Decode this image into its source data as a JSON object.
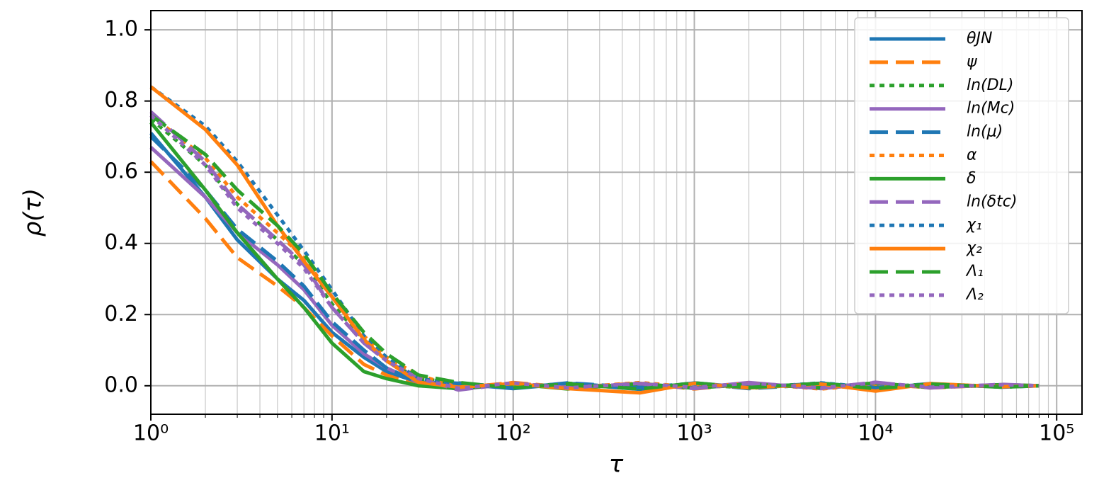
{
  "chart_data": {
    "type": "line",
    "xlabel": "τ",
    "ylabel": "ρ(τ)",
    "xscale": "log",
    "grid": true,
    "legend": "upper right",
    "xlim": [
      1,
      138000
    ],
    "ylim": [
      -0.08,
      1.054
    ],
    "xticks": [
      {
        "value": 1,
        "label": "10⁰"
      },
      {
        "value": 10,
        "label": "10¹"
      },
      {
        "value": 100,
        "label": "10²"
      },
      {
        "value": 1000,
        "label": "10³"
      },
      {
        "value": 10000,
        "label": "10⁴"
      },
      {
        "value": 100000,
        "label": "10⁵"
      }
    ],
    "xminorticks": [
      2,
      3,
      4,
      5,
      6,
      7,
      8,
      9,
      20,
      30,
      40,
      50,
      60,
      70,
      80,
      90,
      200,
      300,
      400,
      500,
      600,
      700,
      800,
      900,
      2000,
      3000,
      4000,
      5000,
      6000,
      7000,
      8000,
      9000,
      20000,
      30000,
      40000,
      50000,
      60000,
      70000,
      80000,
      90000
    ],
    "yticks": [
      {
        "value": 0,
        "label": "0.0"
      },
      0.2,
      0.4,
      0.6,
      0.8,
      {
        "value": 1,
        "label": "1.0"
      }
    ],
    "x": [
      1,
      2,
      3,
      5,
      7,
      10,
      15,
      20,
      30,
      50,
      100,
      200,
      500,
      1000,
      2000,
      5000,
      10000,
      20000,
      50000,
      80000
    ],
    "series": [
      {
        "name": "θJN",
        "color": "#1f77b4",
        "linestyle": "solid",
        "values": [
          0.71,
          0.53,
          0.41,
          0.3,
          0.24,
          0.15,
          0.08,
          0.04,
          0.01,
          0.005,
          -0.008,
          0.006,
          -0.01,
          0.008,
          -0.005,
          0.007,
          -0.006,
          0.004,
          -0.003,
          0.0
        ]
      },
      {
        "name": "ψ",
        "color": "#ff7f0e",
        "linestyle": "dashed",
        "values": [
          0.63,
          0.47,
          0.36,
          0.28,
          0.22,
          0.14,
          0.06,
          0.03,
          0.0,
          -0.006,
          0.009,
          -0.004,
          0.007,
          -0.009,
          0.006,
          -0.005,
          0.008,
          -0.006,
          0.003,
          0.0
        ]
      },
      {
        "name": "ln(DL)",
        "color": "#2ca02c",
        "linestyle": "dotted",
        "values": [
          0.75,
          0.62,
          0.51,
          0.41,
          0.34,
          0.23,
          0.13,
          0.07,
          0.02,
          0.008,
          -0.005,
          0.007,
          -0.008,
          0.005,
          -0.007,
          0.006,
          -0.004,
          0.005,
          -0.002,
          0.0
        ]
      },
      {
        "name": "ln(Mc)",
        "color": "#9467bd",
        "linestyle": "solid",
        "values": [
          0.67,
          0.53,
          0.43,
          0.34,
          0.27,
          0.17,
          0.09,
          0.05,
          0.01,
          -0.01,
          0.006,
          -0.007,
          0.005,
          -0.006,
          0.009,
          -0.008,
          0.006,
          -0.004,
          0.003,
          0.0
        ]
      },
      {
        "name": "ln(μ)",
        "color": "#1f77b4",
        "linestyle": "dashed",
        "values": [
          0.7,
          0.55,
          0.44,
          0.35,
          0.28,
          0.18,
          0.1,
          0.05,
          0.01,
          0.007,
          -0.007,
          0.008,
          -0.005,
          0.007,
          -0.008,
          0.004,
          -0.007,
          0.006,
          -0.004,
          0.0
        ]
      },
      {
        "name": "α",
        "color": "#ff7f0e",
        "linestyle": "dotted",
        "values": [
          0.76,
          0.64,
          0.53,
          0.43,
          0.36,
          0.25,
          0.14,
          0.08,
          0.03,
          -0.005,
          0.008,
          -0.006,
          0.009,
          -0.004,
          0.007,
          -0.009,
          0.005,
          -0.005,
          0.002,
          0.0
        ]
      },
      {
        "name": "δ",
        "color": "#2ca02c",
        "linestyle": "solid",
        "values": [
          0.74,
          0.55,
          0.43,
          0.3,
          0.22,
          0.12,
          0.04,
          0.02,
          0.0,
          -0.008,
          0.005,
          -0.009,
          0.006,
          -0.007,
          0.005,
          -0.006,
          0.008,
          -0.005,
          0.003,
          0.0
        ]
      },
      {
        "name": "ln(δtc)",
        "color": "#9467bd",
        "linestyle": "dashed",
        "values": [
          0.77,
          0.63,
          0.51,
          0.41,
          0.34,
          0.22,
          0.12,
          0.07,
          0.02,
          -0.012,
          0.007,
          -0.005,
          0.006,
          -0.008,
          0.006,
          -0.007,
          0.01,
          -0.006,
          0.004,
          0.0
        ]
      },
      {
        "name": "χ₁",
        "color": "#1f77b4",
        "linestyle": "dotted",
        "values": [
          0.84,
          0.73,
          0.63,
          0.48,
          0.38,
          0.27,
          0.14,
          0.08,
          0.02,
          0.006,
          -0.006,
          0.007,
          -0.007,
          0.006,
          -0.006,
          0.008,
          -0.005,
          0.004,
          -0.003,
          0.0
        ]
      },
      {
        "name": "χ₂",
        "color": "#ff7f0e",
        "linestyle": "solid",
        "values": [
          0.84,
          0.72,
          0.62,
          0.45,
          0.35,
          0.25,
          0.13,
          0.07,
          0.01,
          -0.004,
          0.006,
          -0.008,
          -0.02,
          0.007,
          -0.006,
          0.005,
          -0.015,
          0.006,
          -0.003,
          0.0
        ]
      },
      {
        "name": "Λ₁",
        "color": "#2ca02c",
        "linestyle": "dashed",
        "values": [
          0.76,
          0.65,
          0.55,
          0.45,
          0.37,
          0.26,
          0.15,
          0.09,
          0.03,
          0.009,
          -0.006,
          0.005,
          -0.009,
          0.008,
          -0.005,
          0.007,
          -0.008,
          0.005,
          -0.004,
          0.0
        ]
      },
      {
        "name": "Λ₂",
        "color": "#9467bd",
        "linestyle": "dotted",
        "values": [
          0.76,
          0.62,
          0.5,
          0.4,
          0.33,
          0.22,
          0.12,
          0.07,
          0.02,
          -0.007,
          0.008,
          -0.006,
          0.007,
          -0.005,
          0.008,
          -0.006,
          0.009,
          -0.004,
          0.003,
          0.0
        ]
      }
    ]
  }
}
